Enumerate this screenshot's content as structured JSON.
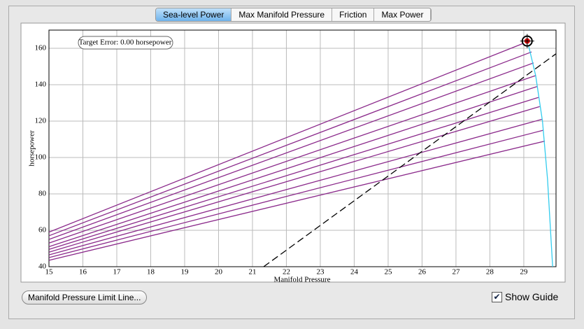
{
  "tabs": [
    "Sea-level Power",
    "Max Manifold Pressure",
    "Friction",
    "Max Power"
  ],
  "active_tab": 0,
  "buttons": {
    "limit_line": "Manifold Pressure Limit Line..."
  },
  "checkbox": {
    "label": "Show Guide",
    "checked": true
  },
  "chart_data": {
    "type": "line",
    "xlabel": "Manifold Pressure",
    "ylabel": "horsepower",
    "annotation": "Target Error: 0.00 horsepower",
    "xlim": [
      15,
      29.95
    ],
    "ylim": [
      40,
      170
    ],
    "xticks": [
      15,
      16,
      17,
      18,
      19,
      20,
      21,
      22,
      23,
      24,
      25,
      26,
      27,
      28,
      29
    ],
    "yticks": [
      40,
      60,
      80,
      100,
      120,
      140,
      160
    ],
    "grid": true,
    "series": [
      {
        "color": "#8b2a8b",
        "x": [
          15,
          29.16
        ],
        "values": [
          59,
          164
        ]
      },
      {
        "color": "#8b2a8b",
        "x": [
          15,
          29.23
        ],
        "values": [
          57,
          158
        ]
      },
      {
        "color": "#8b2a8b",
        "x": [
          15,
          29.29
        ],
        "values": [
          55,
          152
        ]
      },
      {
        "color": "#8b2a8b",
        "x": [
          15,
          29.35
        ],
        "values": [
          53,
          145
        ]
      },
      {
        "color": "#8b2a8b",
        "x": [
          15,
          29.39
        ],
        "values": [
          51,
          139
        ]
      },
      {
        "color": "#8b2a8b",
        "x": [
          15,
          29.43
        ],
        "values": [
          49.5,
          133
        ]
      },
      {
        "color": "#8b2a8b",
        "x": [
          15,
          29.47
        ],
        "values": [
          48,
          128
        ]
      },
      {
        "color": "#8b2a8b",
        "x": [
          15,
          29.54
        ],
        "values": [
          46.5,
          121
        ]
      },
      {
        "color": "#8b2a8b",
        "x": [
          15,
          29.58
        ],
        "values": [
          45,
          115
        ]
      },
      {
        "color": "#8b2a8b",
        "x": [
          15,
          29.62
        ],
        "values": [
          43.5,
          109
        ]
      },
      {
        "color": "#33ccee",
        "x": [
          29.1,
          29.16,
          29.35,
          29.55,
          29.7,
          29.85
        ],
        "values": [
          164,
          160,
          145,
          120,
          88,
          40
        ]
      },
      {
        "color": "#000000",
        "dashed": true,
        "x": [
          21.33,
          29.95
        ],
        "values": [
          40,
          157
        ]
      }
    ],
    "target": {
      "x": 29.1,
      "y": 164
    }
  }
}
